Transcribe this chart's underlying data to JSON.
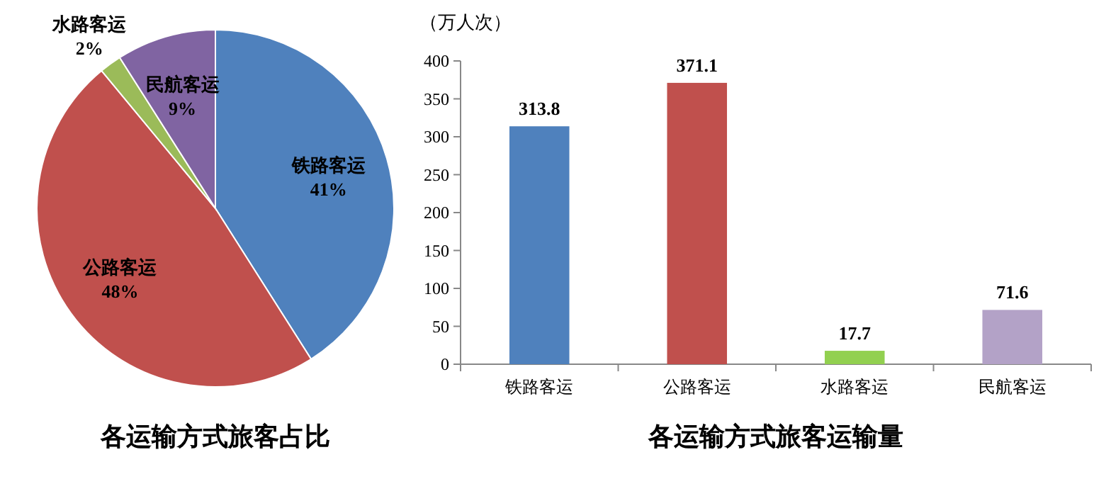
{
  "chart_data": [
    {
      "type": "pie",
      "title": "各运输方式旅客占比",
      "categories": [
        "铁路客运",
        "公路客运",
        "水路客运",
        "民航客运"
      ],
      "values": [
        41,
        48,
        2,
        9
      ],
      "colors": [
        "#4f81bd",
        "#c0504d",
        "#9bbb59",
        "#8064a2"
      ],
      "value_labels": [
        "41%",
        "48%",
        "2%",
        "9%"
      ]
    },
    {
      "type": "bar",
      "title": "各运输方式旅客运输量",
      "ylabel": "（万人次）",
      "categories": [
        "铁路客运",
        "公路客运",
        "水路客运",
        "民航客运"
      ],
      "values": [
        313.8,
        371.1,
        17.7,
        71.6
      ],
      "colors": [
        "#4f81bd",
        "#c0504d",
        "#92d050",
        "#b3a2c7"
      ],
      "ylim": [
        0,
        400
      ],
      "yticks": [
        0,
        50,
        100,
        150,
        200,
        250,
        300,
        350,
        400
      ],
      "data_labels": true
    }
  ]
}
